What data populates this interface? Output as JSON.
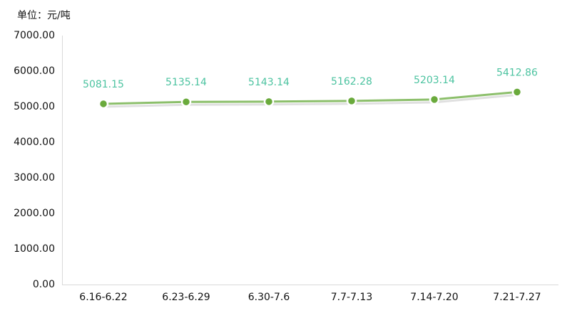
{
  "chart_data": {
    "type": "line",
    "unit_label": "单位：元/吨",
    "categories": [
      "6.16-6.22",
      "6.23-6.29",
      "6.30-7.6",
      "7.7-7.13",
      "7.14-7.20",
      "7.21-7.27"
    ],
    "values": [
      5081.15,
      5135.14,
      5143.14,
      5162.28,
      5203.14,
      5412.86
    ],
    "color": "#8cbf6b",
    "marker_color": "#6aaa3c",
    "label_color": "#4cc3a0",
    "ylim": [
      0,
      7000
    ],
    "yticks": [
      {
        "value": 0,
        "label": "0.00"
      },
      {
        "value": 1000,
        "label": "1000.00"
      },
      {
        "value": 2000,
        "label": "2000.00"
      },
      {
        "value": 3000,
        "label": "3000.00"
      },
      {
        "value": 4000,
        "label": "4000.00"
      },
      {
        "value": 5000,
        "label": "5000.00"
      },
      {
        "value": 6000,
        "label": "6000.00"
      },
      {
        "value": 7000,
        "label": "7000.00"
      }
    ],
    "grid": false
  }
}
